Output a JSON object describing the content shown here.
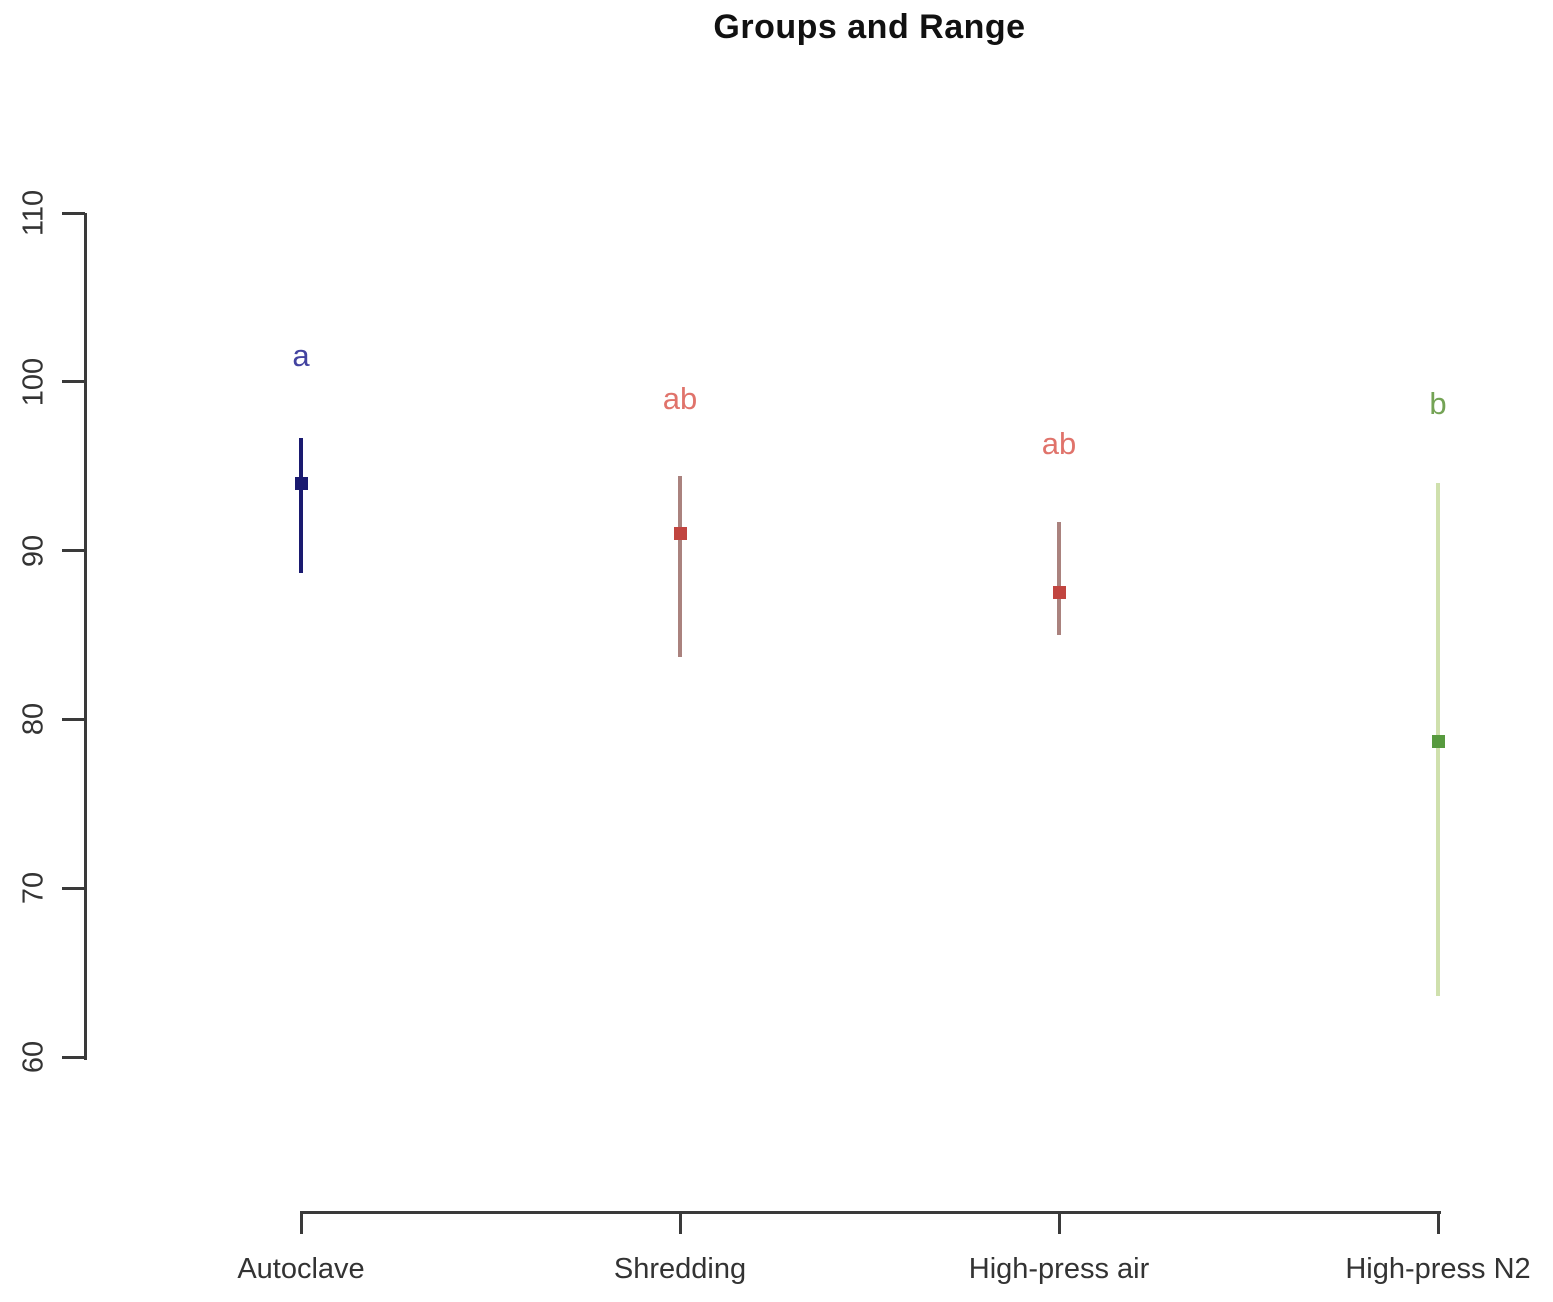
{
  "chart_data": {
    "type": "scatter",
    "title": "Groups and Range",
    "xlabel": "",
    "ylabel": "",
    "ylim": [
      60,
      110
    ],
    "yticks": [
      60,
      70,
      80,
      90,
      100,
      110
    ],
    "grid": false,
    "legend": false,
    "categories": [
      "Autoclave",
      "Shredding",
      "High-press air",
      "High-press N2"
    ],
    "points": [
      {
        "category": "Autoclave",
        "mean": 94.0,
        "range_low": 88.7,
        "range_high": 96.7,
        "group_letter": "a",
        "letter_value": 101.5,
        "point_color": "#1a1a70",
        "line_color": "#1a1a70",
        "letter_color": "#4343a0"
      },
      {
        "category": "Shredding",
        "mean": 91.0,
        "range_low": 83.7,
        "range_high": 94.4,
        "group_letter": "ab",
        "letter_value": 99.0,
        "point_color": "#c14540",
        "line_color": "#aa827e",
        "letter_color": "#e0736b"
      },
      {
        "category": "High-press air",
        "mean": 87.5,
        "range_low": 85.0,
        "range_high": 91.7,
        "group_letter": "ab",
        "letter_value": 96.3,
        "point_color": "#c14540",
        "line_color": "#aa827e",
        "letter_color": "#e0736b"
      },
      {
        "category": "High-press N2",
        "mean": 78.7,
        "range_low": 63.6,
        "range_high": 94.0,
        "group_letter": "b",
        "letter_value": 98.7,
        "point_color": "#579a3e",
        "line_color": "#cfe0ad",
        "letter_color": "#74a355"
      }
    ],
    "colors": {
      "axis": "#3a3a3a",
      "tick_label": "#333333",
      "title": "#111111",
      "background": "#ffffff"
    }
  }
}
